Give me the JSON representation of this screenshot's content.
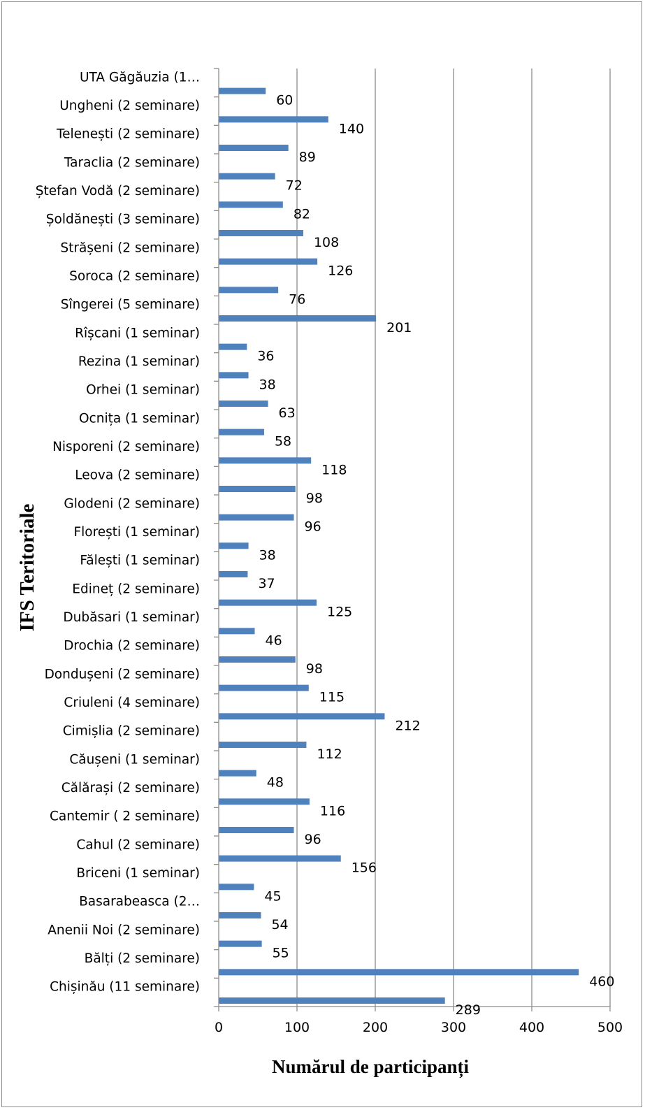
{
  "chart_data": {
    "type": "bar",
    "orientation": "horizontal",
    "title": "",
    "xlabel": "Numărul de participanți",
    "ylabel": "IFS Teritoriale",
    "xlim": [
      0,
      500
    ],
    "xticks": [
      "0",
      "100",
      "200",
      "300",
      "400",
      "500"
    ],
    "grid": true,
    "legend": "none",
    "bar_color": "#4f81bd",
    "categories": [
      "UTA Găgăuzia (1…",
      "Ungheni (2 seminare)",
      "Telenești (2 seminare)",
      "Taraclia (2 seminare)",
      "Ștefan Vodă (2 seminare)",
      "Șoldănești (3 seminare)",
      "Strășeni (2 seminare)",
      "Soroca (2 seminare)",
      "Sîngerei (5 seminare)",
      "Rîșcani (1 seminar)",
      "Rezina (1 seminar)",
      "Orhei (1 seminar)",
      "Ocnița (1 seminar)",
      "Nisporeni (2 seminare)",
      "Leova (2 seminare)",
      "Glodeni (2 seminare)",
      "Florești (1 seminar)",
      "Fălești (1 seminar)",
      "Edineț (2 seminare)",
      "Dubăsari (1 seminar)",
      "Drochia (2 seminare)",
      "Dondușeni (2 seminare)",
      "Criuleni (4 seminare)",
      "Cimișlia (2 seminare)",
      "Căușeni (1 seminar)",
      "Călărași (2 seminare)",
      "Cantemir ( 2 seminare)",
      "Cahul (2 seminare)",
      "Briceni (1 seminar)",
      "Basarabeasca (2…",
      "Anenii Noi (2 seminare)",
      "Bălți (2 seminare)",
      "Chișinău (11 seminare)"
    ],
    "values": [
      60,
      140,
      89,
      72,
      82,
      108,
      126,
      76,
      201,
      36,
      38,
      63,
      58,
      118,
      98,
      96,
      38,
      37,
      125,
      46,
      98,
      115,
      212,
      112,
      48,
      116,
      96,
      156,
      45,
      54,
      55,
      460,
      289
    ],
    "value_labels": [
      "60",
      "140",
      "89",
      "72",
      "82",
      "108",
      "126",
      "76",
      "201",
      "36",
      "38",
      "63",
      "58",
      "118",
      "98",
      "96",
      "38",
      "37",
      "125",
      "46",
      "98",
      "115",
      "212",
      "112",
      "48",
      "116",
      "96",
      "156",
      "45",
      "54",
      "55",
      "460",
      "289"
    ]
  }
}
